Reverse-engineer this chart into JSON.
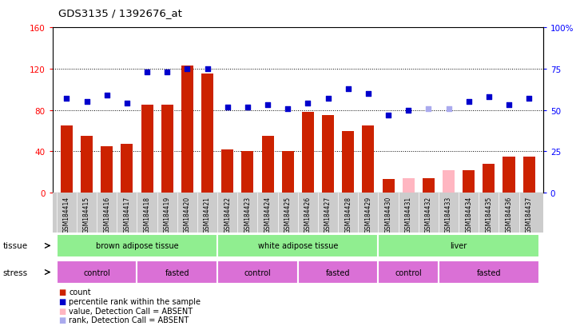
{
  "title": "GDS3135 / 1392676_at",
  "samples": [
    "GSM184414",
    "GSM184415",
    "GSM184416",
    "GSM184417",
    "GSM184418",
    "GSM184419",
    "GSM184420",
    "GSM184421",
    "GSM184422",
    "GSM184423",
    "GSM184424",
    "GSM184425",
    "GSM184426",
    "GSM184427",
    "GSM184428",
    "GSM184429",
    "GSM184430",
    "GSM184431",
    "GSM184432",
    "GSM184433",
    "GSM184434",
    "GSM184435",
    "GSM184436",
    "GSM184437"
  ],
  "count_values": [
    65,
    55,
    45,
    47,
    85,
    85,
    123,
    115,
    42,
    40,
    55,
    40,
    78,
    75,
    60,
    65,
    13,
    14,
    14,
    22,
    22,
    28,
    35,
    35
  ],
  "count_absent": [
    false,
    false,
    false,
    false,
    false,
    false,
    false,
    false,
    false,
    false,
    false,
    false,
    false,
    false,
    false,
    false,
    false,
    true,
    false,
    true,
    false,
    false,
    false,
    false
  ],
  "rank_values": [
    57,
    55,
    59,
    54,
    73,
    73,
    75,
    75,
    52,
    52,
    53,
    51,
    54,
    57,
    63,
    60,
    47,
    50,
    51,
    51,
    55,
    58,
    53,
    57
  ],
  "rank_absent": [
    false,
    false,
    false,
    false,
    false,
    false,
    false,
    false,
    false,
    false,
    false,
    false,
    false,
    false,
    false,
    false,
    false,
    false,
    true,
    true,
    false,
    false,
    false,
    false
  ],
  "left_ylim": [
    0,
    160
  ],
  "left_yticks": [
    0,
    40,
    80,
    120,
    160
  ],
  "right_ylim": [
    0,
    100
  ],
  "right_yticks": [
    0,
    25,
    50,
    75,
    100
  ],
  "bar_color_present": "#CC2200",
  "bar_color_absent": "#FFB6C1",
  "dot_color_present": "#0000CC",
  "dot_color_absent": "#AAAAEE",
  "tissue_color": "#90EE90",
  "stress_color": "#DA70D6",
  "xticklabel_bg": "#CCCCCC",
  "tissue_groups": [
    {
      "label": "brown adipose tissue",
      "start": 0,
      "end": 7
    },
    {
      "label": "white adipose tissue",
      "start": 8,
      "end": 15
    },
    {
      "label": "liver",
      "start": 16,
      "end": 23
    }
  ],
  "stress_groups": [
    {
      "label": "control",
      "start": 0,
      "end": 3
    },
    {
      "label": "fasted",
      "start": 4,
      "end": 7
    },
    {
      "label": "control",
      "start": 8,
      "end": 11
    },
    {
      "label": "fasted",
      "start": 12,
      "end": 15
    },
    {
      "label": "control",
      "start": 16,
      "end": 18
    },
    {
      "label": "fasted",
      "start": 19,
      "end": 23
    }
  ]
}
